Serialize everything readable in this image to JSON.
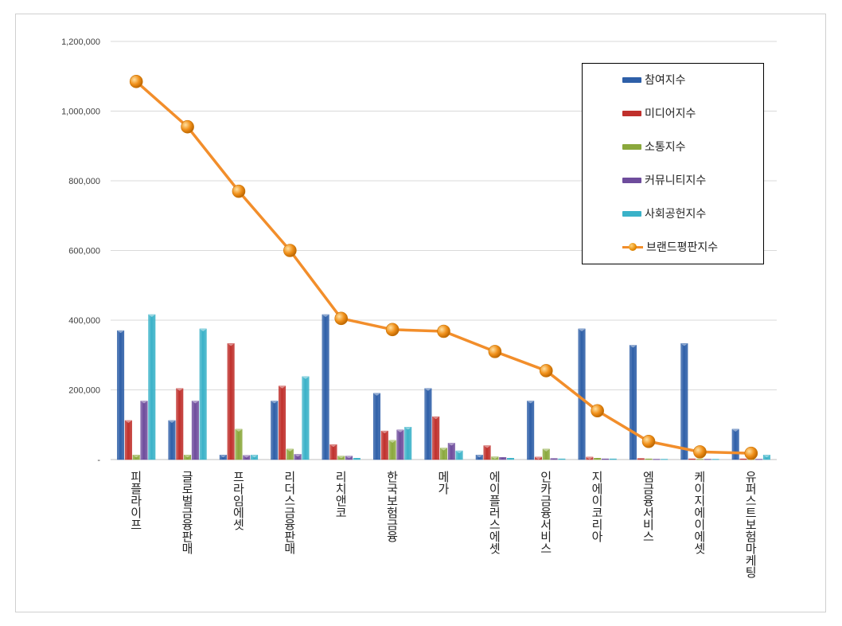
{
  "chart_data": {
    "type": "bar",
    "categories": [
      "피플라이프",
      "글로벌금융판매",
      "프라임에셋",
      "리더스금융판매",
      "리치앤코",
      "한국보험금융",
      "메가",
      "에이플러스에셋",
      "인카금융서비스",
      "지에이코리아",
      "엠금융서비스",
      "케이지에이에셋",
      "유퍼스트보험마케팅"
    ],
    "ylim": [
      0,
      1200000
    ],
    "yticks": [
      0,
      200000,
      400000,
      600000,
      800000,
      1000000,
      1200000
    ],
    "ytick_labels": [
      "-",
      "200,000",
      "400,000",
      "600,000",
      "800,000",
      "1,000,000",
      "1,200,000"
    ],
    "grid": true,
    "legend_position": "top-right",
    "series": [
      {
        "name": "참여지수",
        "kind": "bar",
        "color": "#2e5fa8",
        "values": [
          370000,
          112000,
          13000,
          168000,
          416000,
          190000,
          204000,
          13000,
          168000,
          375000,
          328000,
          333000,
          87000
        ]
      },
      {
        "name": "미디어지수",
        "kind": "bar",
        "color": "#c0302c",
        "values": [
          112000,
          204000,
          333000,
          211000,
          43000,
          82000,
          123000,
          40000,
          7000,
          7000,
          3000,
          2000,
          2000
        ]
      },
      {
        "name": "소통지수",
        "kind": "bar",
        "color": "#8aa83c",
        "values": [
          13000,
          13000,
          87000,
          30000,
          10000,
          55000,
          33000,
          8000,
          30000,
          4000,
          2000,
          1000,
          1000
        ]
      },
      {
        "name": "커뮤니티지수",
        "kind": "bar",
        "color": "#6e4c9c",
        "values": [
          168000,
          168000,
          12000,
          15000,
          10000,
          85000,
          47000,
          6000,
          3000,
          2000,
          1000,
          1000,
          1000
        ]
      },
      {
        "name": "사회공헌지수",
        "kind": "bar",
        "color": "#3ab2c8",
        "values": [
          416000,
          375000,
          13000,
          238000,
          4000,
          93000,
          25000,
          4000,
          2000,
          2000,
          1000,
          1000,
          13000
        ]
      },
      {
        "name": "브랜드평판지수",
        "kind": "line",
        "color": "#f28e2b",
        "values": [
          1085000,
          955000,
          770000,
          600000,
          405000,
          373000,
          368000,
          310000,
          255000,
          140000,
          52000,
          22000,
          18000
        ]
      }
    ]
  }
}
